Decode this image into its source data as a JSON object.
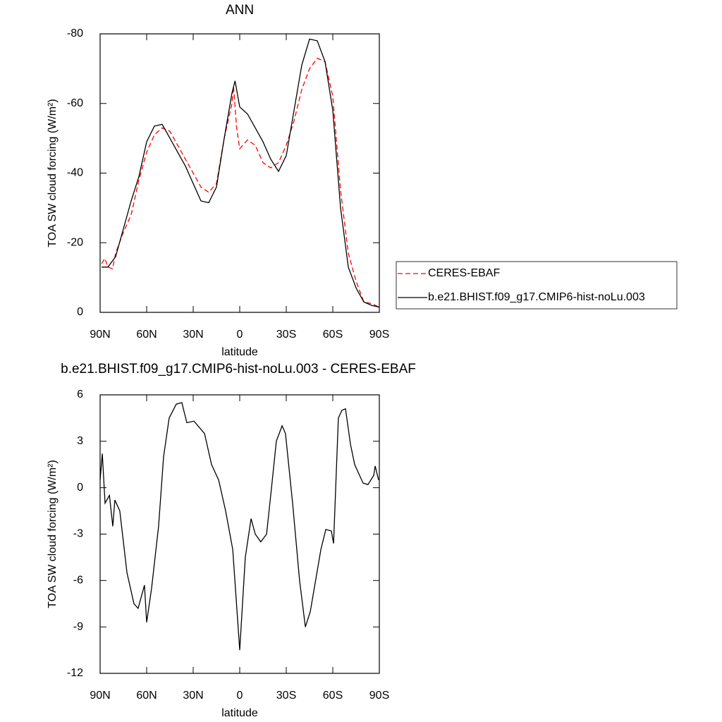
{
  "chart_data": [
    {
      "type": "line",
      "title": "ANN",
      "xlabel": "latitude",
      "ylabel": "TOA SW cloud forcing (W/m²)",
      "xlim": [
        90,
        -90
      ],
      "ylim": [
        0,
        -80
      ],
      "xticks": [
        {
          "value": 90,
          "label": "90N"
        },
        {
          "value": 60,
          "label": "60N"
        },
        {
          "value": 30,
          "label": "30N"
        },
        0,
        {
          "value": -30,
          "label": "30S"
        },
        {
          "value": -60,
          "label": "60S"
        },
        {
          "value": -90,
          "label": "90S"
        }
      ],
      "yticks": [
        0,
        -20,
        -40,
        -60,
        -80
      ],
      "legend": "outside right",
      "series": [
        {
          "name": "CERES-EBAF",
          "color": "#ff0000",
          "dashed": true,
          "x": [
            89,
            87,
            85,
            82,
            80,
            75,
            70,
            65,
            60,
            55,
            50,
            45,
            40,
            35,
            30,
            25,
            20,
            15,
            10,
            5,
            4,
            2,
            0,
            -5,
            -10,
            -15,
            -20,
            -25,
            -30,
            -35,
            -40,
            -45,
            -50,
            -55,
            -60,
            -65,
            -70,
            -75,
            -80,
            -85,
            -90
          ],
          "values": [
            -14,
            -15.5,
            -13,
            -12.5,
            -17,
            -23,
            -28,
            -38,
            -46,
            -51,
            -53,
            -52,
            -48,
            -44,
            -40,
            -36,
            -34.5,
            -37,
            -50,
            -60,
            -65,
            -53,
            -47,
            -49.5,
            -48,
            -43,
            -41.5,
            -43,
            -48,
            -55,
            -64,
            -70,
            -73,
            -72,
            -62,
            -35,
            -17,
            -9,
            -3,
            -2.5,
            -1.5
          ]
        },
        {
          "name": "b.e21.BHIST.f09_g17.CMIP6-hist-noLu.003",
          "color": "#000000",
          "dashed": false,
          "x": [
            89,
            85,
            80,
            75,
            70,
            65,
            60,
            55,
            50,
            45,
            40,
            35,
            30,
            25,
            20,
            15,
            10,
            5,
            3,
            0,
            -5,
            -10,
            -15,
            -20,
            -25,
            -30,
            -35,
            -40,
            -45,
            -50,
            -55,
            -60,
            -65,
            -70,
            -75,
            -80,
            -85,
            -90
          ],
          "values": [
            -13,
            -13,
            -16,
            -24,
            -32,
            -39,
            -49,
            -53.5,
            -54,
            -50,
            -46,
            -42,
            -37,
            -32,
            -31.5,
            -36,
            -50,
            -63,
            -66.5,
            -59,
            -57,
            -53,
            -49,
            -44,
            -40.5,
            -45,
            -58,
            -71,
            -78.5,
            -78,
            -72,
            -58,
            -30,
            -13,
            -7,
            -3,
            -2,
            -1.5
          ]
        }
      ]
    },
    {
      "type": "line",
      "title": "b.e21.BHIST.f09_g17.CMIP6-hist-noLu.003 - CERES-EBAF",
      "xlabel": "latitude",
      "ylabel": "TOA SW cloud forcing (W/m²)",
      "xlim": [
        90,
        -90
      ],
      "ylim": [
        -12,
        6
      ],
      "xticks": [
        {
          "value": 90,
          "label": "90N"
        },
        {
          "value": 60,
          "label": "60N"
        },
        {
          "value": 30,
          "label": "30N"
        },
        0,
        {
          "value": -30,
          "label": "30S"
        },
        {
          "value": -60,
          "label": "60S"
        },
        {
          "value": -90,
          "label": "90S"
        }
      ],
      "yticks": [
        6,
        3,
        0,
        -3,
        -6,
        -9,
        -12
      ],
      "series": [
        {
          "color": "#000000",
          "dashed": false,
          "x": [
            90,
            88.6,
            86.8,
            84,
            81.8,
            80.5,
            77.3,
            72.7,
            68.2,
            65.5,
            61.4,
            60,
            56.8,
            52.3,
            49.1,
            45.5,
            40.9,
            37.3,
            34.1,
            29.5,
            22.7,
            18.2,
            13.6,
            9.1,
            4.5,
            0,
            -3.6,
            -7.3,
            -10,
            -13.6,
            -17.3,
            -20.5,
            -23.6,
            -27.3,
            -29.5,
            -34.1,
            -38.6,
            -42.3,
            -45.5,
            -52.3,
            -55.5,
            -59.1,
            -60.5,
            -63.6,
            -65.9,
            -68.2,
            -71.4,
            -74.1,
            -79.5,
            -82.7,
            -86.4,
            -87.3,
            -89.5
          ],
          "values": [
            0.5,
            2.2,
            -1,
            -0.5,
            -2.5,
            -0.8,
            -1.5,
            -5.5,
            -7.5,
            -7.8,
            -6.3,
            -8.7,
            -6.5,
            -2.5,
            2,
            4.5,
            5.4,
            5.5,
            4.2,
            4.3,
            3.5,
            1.5,
            0.5,
            -1.5,
            -4,
            -10.5,
            -4.5,
            -2,
            -3,
            -3.5,
            -3,
            0,
            3,
            4,
            3.5,
            -1,
            -6,
            -9,
            -8,
            -4,
            -2.7,
            -2.8,
            -3.6,
            4.5,
            5,
            5.1,
            2.8,
            1.5,
            0.3,
            0.2,
            0.8,
            1.4,
            0.5
          ]
        }
      ]
    }
  ]
}
